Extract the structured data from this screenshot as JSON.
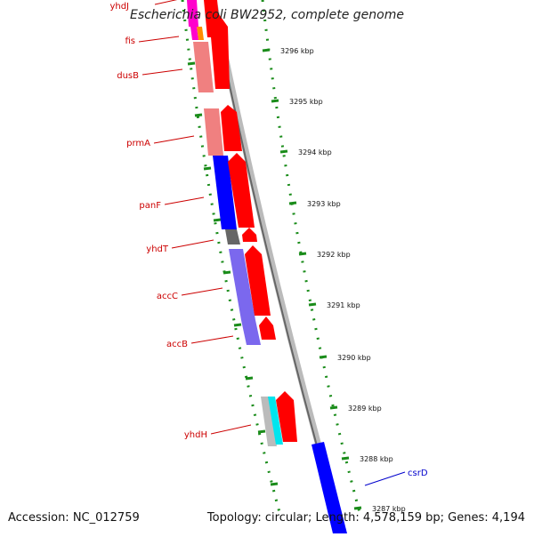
{
  "title": "Escherichia coli BW2952, complete genome",
  "accession": "Accession: NC_012759",
  "summary": "Topology: circular; Length: 4,578,159 bp; Genes: 4,194",
  "genes_left": [
    "yhdJ",
    "fis",
    "dusB",
    "prmA",
    "panF",
    "yhdT",
    "accC",
    "accB",
    "yhdH"
  ],
  "genes_right": [
    "csrD"
  ],
  "ticks": [
    "3296 kbp",
    "3295 kbp",
    "3294 kbp",
    "3293 kbp",
    "3292 kbp",
    "3291 kbp",
    "3290 kbp",
    "3289 kbp",
    "3288 kbp",
    "3287 kbp"
  ],
  "colors": {
    "label_left": "#cc0000",
    "label_right": "#0000cc",
    "cds_forward": "#ff0000",
    "cds_reverse_blue": "#0000ff",
    "cds_salmon": "#f08080",
    "cds_purple": "#7b68ee",
    "cds_cyan": "#00e5ee",
    "cds_gray": "#bbbbbb",
    "cds_magenta": "#ff00cc",
    "cds_orange": "#ff8c00",
    "backbone": "#888888",
    "tick": "#1a8c1a"
  }
}
